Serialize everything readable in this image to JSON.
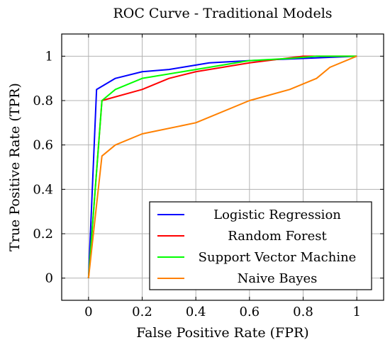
{
  "chart_data": {
    "type": "line",
    "title": "ROC Curve - Traditional Models",
    "xlabel": "False Positive Rate (FPR)",
    "ylabel": "True Positive Rate (TPR)",
    "xlim": [
      -0.1,
      1.1
    ],
    "ylim": [
      -0.1,
      1.1
    ],
    "xticks": [
      0,
      0.2,
      0.4,
      0.6,
      0.8,
      1
    ],
    "yticks": [
      0,
      0.2,
      0.4,
      0.6,
      0.8,
      1
    ],
    "xtick_labels": [
      "0",
      "0.2",
      "0.4",
      "0.6",
      "0.8",
      "1"
    ],
    "ytick_labels": [
      "0",
      "0.2",
      "0.4",
      "0.6",
      "0.8",
      "1"
    ],
    "grid": true,
    "legend_position": "bottom-right",
    "series": [
      {
        "name": "Logistic Regression",
        "color": "#0000ff",
        "x": [
          0,
          0.03,
          0.1,
          0.2,
          0.3,
          0.35,
          0.45,
          0.6,
          0.8,
          1
        ],
        "y": [
          0,
          0.85,
          0.9,
          0.93,
          0.94,
          0.95,
          0.97,
          0.98,
          0.99,
          1
        ]
      },
      {
        "name": "Random Forest",
        "color": "#ff0000",
        "x": [
          0,
          0.05,
          0.2,
          0.3,
          0.4,
          0.6,
          0.8,
          0.85,
          1
        ],
        "y": [
          0,
          0.8,
          0.85,
          0.9,
          0.93,
          0.97,
          1,
          1,
          1
        ]
      },
      {
        "name": "Support Vector Machine",
        "color": "#00ff00",
        "x": [
          0,
          0.05,
          0.1,
          0.2,
          0.45,
          0.6,
          0.75,
          0.85,
          1
        ],
        "y": [
          0,
          0.8,
          0.85,
          0.9,
          0.95,
          0.98,
          0.99,
          1,
          1
        ]
      },
      {
        "name": "Naive Bayes",
        "color": "#ff8000",
        "x": [
          0,
          0.05,
          0.1,
          0.2,
          0.4,
          0.6,
          0.75,
          0.85,
          0.9,
          1
        ],
        "y": [
          0,
          0.55,
          0.6,
          0.65,
          0.7,
          0.8,
          0.85,
          0.9,
          0.95,
          1
        ]
      }
    ]
  }
}
